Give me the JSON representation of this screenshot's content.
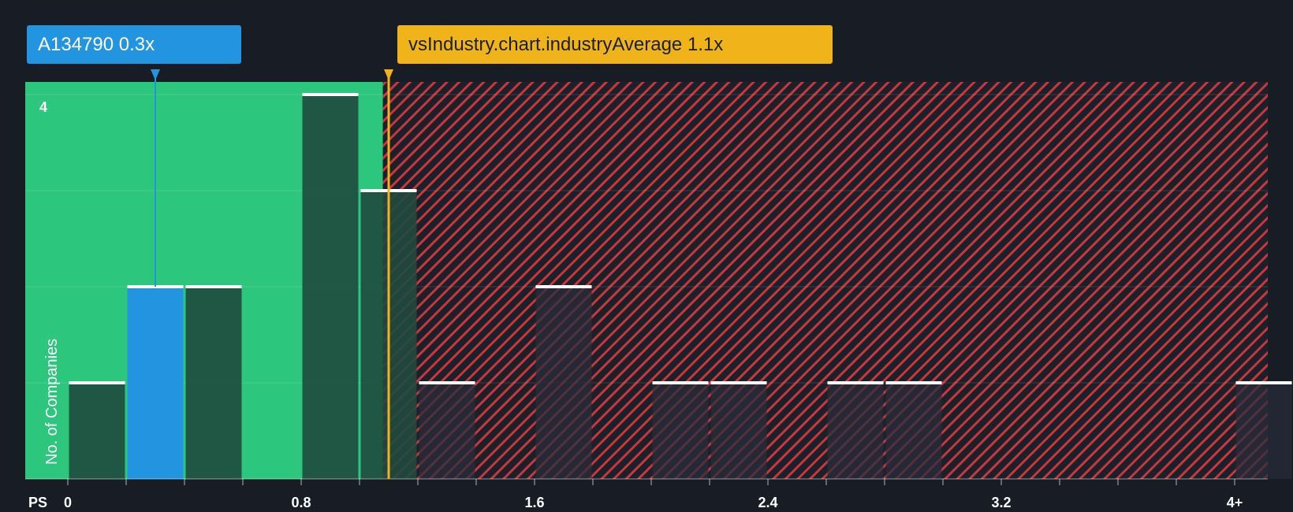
{
  "chart_data": {
    "type": "bar",
    "x_axis_unit": "PS",
    "ylabel": "No. of Companies",
    "xlim": [
      -0.15,
      4.1
    ],
    "ylim": [
      0,
      4.15
    ],
    "bin_width": 0.2,
    "x_ticks": [
      {
        "value": 0,
        "label": "0"
      },
      {
        "value": 0.8,
        "label": "0.8"
      },
      {
        "value": 1.6,
        "label": "1.6"
      },
      {
        "value": 2.4,
        "label": "2.4"
      },
      {
        "value": 3.2,
        "label": "3.2"
      },
      {
        "value": 4.0,
        "label": "4+"
      }
    ],
    "y_ticks": [
      {
        "value": 4,
        "label": "4"
      }
    ],
    "bars": [
      {
        "x0": 0.0,
        "x1": 0.2,
        "value": 1
      },
      {
        "x0": 0.2,
        "x1": 0.4,
        "value": 2,
        "highlight": true
      },
      {
        "x0": 0.4,
        "x1": 0.6,
        "value": 2
      },
      {
        "x0": 0.8,
        "x1": 1.0,
        "value": 4
      },
      {
        "x0": 1.0,
        "x1": 1.2,
        "value": 3
      },
      {
        "x0": 1.2,
        "x1": 1.4,
        "value": 1
      },
      {
        "x0": 1.6,
        "x1": 1.8,
        "value": 2
      },
      {
        "x0": 2.0,
        "x1": 2.2,
        "value": 1
      },
      {
        "x0": 2.2,
        "x1": 2.4,
        "value": 1
      },
      {
        "x0": 2.6,
        "x1": 2.8,
        "value": 1
      },
      {
        "x0": 2.8,
        "x1": 3.0,
        "value": 1
      },
      {
        "x0": 4.0,
        "x1": 4.2,
        "value": 1
      }
    ],
    "fair_value_upper": 1.08,
    "company": {
      "name": "A134790",
      "value": 0.3,
      "label": "A134790 0.3x"
    },
    "industry_average": {
      "value": 1.1,
      "label": "vsIndustry.chart.industryAverage 1.1x"
    },
    "colors": {
      "background": "#181c25",
      "undervalued_zone": "#2dc67d",
      "overvalued_hatch": "#c9363d",
      "bar": "#1f4a3e",
      "company_bar": "#2394e0",
      "industry_line": "#f0b41a"
    }
  }
}
